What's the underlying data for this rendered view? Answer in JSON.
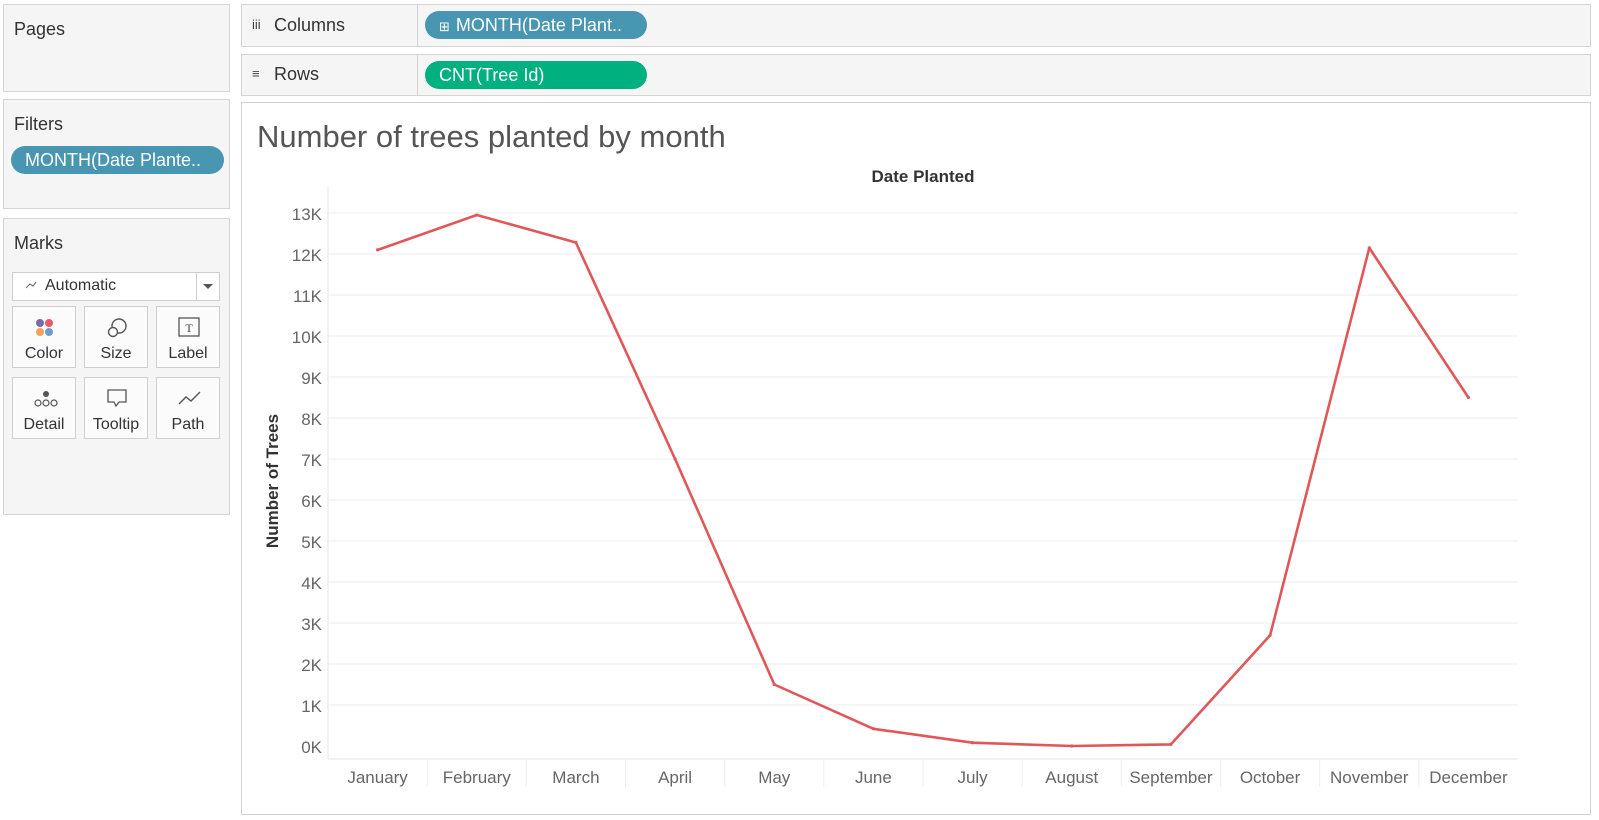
{
  "pages_card": {
    "title": "Pages"
  },
  "filters_card": {
    "title": "Filters",
    "pill": "MONTH(Date Plante.."
  },
  "marks_card": {
    "title": "Marks",
    "mark_type": "Automatic",
    "buttons": {
      "color": "Color",
      "size": "Size",
      "label": "Label",
      "detail": "Detail",
      "tooltip": "Tooltip",
      "path": "Path"
    }
  },
  "columns_shelf": {
    "label": "Columns",
    "icon": "iii",
    "pill": "MONTH(Date Plant..",
    "pill_prefix": "⊞"
  },
  "rows_shelf": {
    "label": "Rows",
    "icon": "≡",
    "pill": "CNT(Tree Id)"
  },
  "colors": {
    "dimension_pill": "#4996b2",
    "measure_pill": "#00b180",
    "line": "#e15759"
  },
  "view": {
    "title": "Number of trees planted by month"
  },
  "chart_data": {
    "type": "line",
    "title": "Number of trees planted by month",
    "xlabel": "Date Planted",
    "ylabel": "Number of Trees",
    "categories": [
      "January",
      "February",
      "March",
      "April",
      "May",
      "June",
      "July",
      "August",
      "September",
      "October",
      "November",
      "December"
    ],
    "series": [
      {
        "values": [
          12100,
          12950,
          12280,
          7000,
          1500,
          420,
          80,
          0,
          40,
          2700,
          12150,
          8500
        ]
      }
    ],
    "ylim": [
      0,
      13000
    ],
    "yticks": [
      0,
      1000,
      2000,
      3000,
      4000,
      5000,
      6000,
      7000,
      8000,
      9000,
      10000,
      11000,
      12000,
      13000
    ],
    "ytick_labels": [
      "0K",
      "1K",
      "2K",
      "3K",
      "4K",
      "5K",
      "6K",
      "7K",
      "8K",
      "9K",
      "10K",
      "11K",
      "12K",
      "13K"
    ],
    "grid": true
  }
}
